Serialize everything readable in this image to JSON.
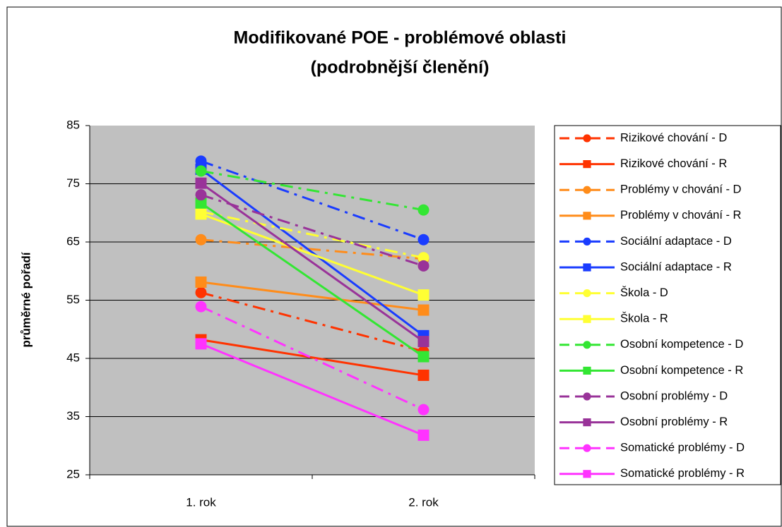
{
  "chart_data": {
    "type": "line",
    "title": [
      "Modifikované POE - problémové oblasti",
      "(podrobnější členění)"
    ],
    "y_label": "průměrné pořadí",
    "categories": [
      "1. rok",
      "2. rok"
    ],
    "ylim": [
      25,
      85
    ],
    "yticks": [
      25,
      35,
      45,
      55,
      65,
      75,
      85
    ],
    "grid": true,
    "series": [
      {
        "name": "Rizikové chování - D",
        "color": "#ff3300",
        "line": "dashdot",
        "marker": "circle",
        "values": [
          56.3,
          46.2
        ]
      },
      {
        "name": "Rizikové chování - R",
        "color": "#ff3300",
        "line": "solid",
        "marker": "square",
        "values": [
          48.2,
          42.1
        ]
      },
      {
        "name": "Problémy v chování - D",
        "color": "#ff8c1a",
        "line": "dashdot",
        "marker": "circle",
        "values": [
          65.4,
          62.1
        ]
      },
      {
        "name": "Problémy v chování - R",
        "color": "#ff8c1a",
        "line": "solid",
        "marker": "square",
        "values": [
          58.1,
          53.3
        ]
      },
      {
        "name": "Sociální adaptace - D",
        "color": "#1a3cff",
        "line": "dashdot",
        "marker": "circle",
        "values": [
          78.9,
          65.4
        ]
      },
      {
        "name": "Sociální adaptace - R",
        "color": "#1a3cff",
        "line": "solid",
        "marker": "square",
        "values": [
          77.5,
          48.9
        ]
      },
      {
        "name": "Škola - D",
        "color": "#ffff33",
        "line": "dashdot",
        "marker": "circle",
        "values": [
          70.2,
          62.3
        ]
      },
      {
        "name": "Škola - R",
        "color": "#ffff33",
        "line": "solid",
        "marker": "square",
        "values": [
          69.8,
          55.9
        ]
      },
      {
        "name": "Osobní kompetence - D",
        "color": "#33e633",
        "line": "dashdot",
        "marker": "circle",
        "values": [
          77.2,
          70.5
        ]
      },
      {
        "name": "Osobní kompetence - R",
        "color": "#33e633",
        "line": "solid",
        "marker": "square",
        "values": [
          71.7,
          45.3
        ]
      },
      {
        "name": "Osobní problémy - D",
        "color": "#993399",
        "line": "dashdot",
        "marker": "circle",
        "values": [
          73.1,
          60.9
        ]
      },
      {
        "name": "Osobní problémy - R",
        "color": "#993399",
        "line": "solid",
        "marker": "square",
        "values": [
          75.1,
          47.9
        ]
      },
      {
        "name": "Somatické problémy - D",
        "color": "#ff33ff",
        "line": "dashdot",
        "marker": "circle",
        "values": [
          53.9,
          36.2
        ]
      },
      {
        "name": "Somatické problémy - R",
        "color": "#ff33ff",
        "line": "solid",
        "marker": "square",
        "values": [
          47.5,
          31.8
        ]
      }
    ]
  }
}
